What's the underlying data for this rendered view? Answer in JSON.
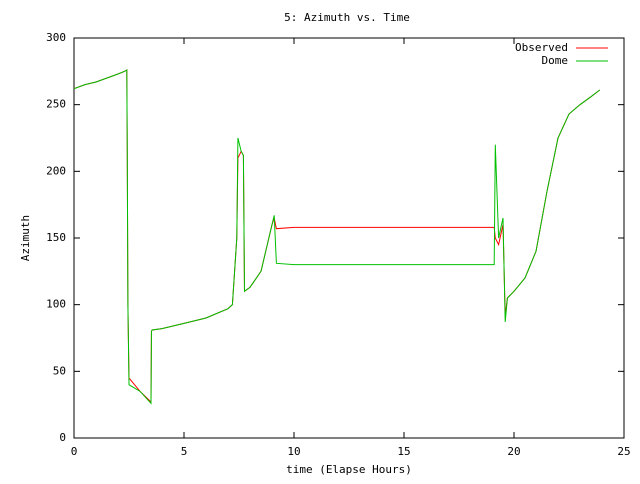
{
  "chart_data": {
    "type": "line",
    "title": "5: Azimuth vs. Time",
    "x_label": "time (Elapse Hours)",
    "y_label": "Azimuth",
    "x": [
      0,
      0.5,
      1.0,
      1.5,
      2.0,
      2.3,
      2.4,
      2.42,
      2.45,
      2.5,
      3.0,
      3.5,
      3.52,
      3.55,
      4.0,
      5.0,
      6.0,
      7.0,
      7.2,
      7.4,
      7.45,
      7.6,
      7.7,
      7.75,
      8.0,
      8.5,
      9.0,
      9.1,
      9.2,
      10.0,
      19.0,
      19.1,
      19.15,
      19.3,
      19.5,
      19.6,
      19.7,
      20.0,
      20.5,
      21.0,
      21.5,
      22.0,
      22.5,
      23.0,
      23.5,
      23.9
    ],
    "series": [
      {
        "name": "Observed",
        "color": "#ff0000",
        "values": [
          262,
          265,
          267,
          270,
          273,
          275,
          276,
          218,
          100,
          45,
          35,
          27,
          80,
          81,
          82,
          86,
          90,
          97,
          100,
          150,
          210,
          215,
          212,
          110,
          113,
          125,
          160,
          165,
          157,
          158,
          158,
          158,
          150,
          145,
          160,
          92,
          105,
          110,
          120,
          140,
          185,
          225,
          243,
          250,
          256,
          261
        ]
      },
      {
        "name": "Dome",
        "color": "#00c000",
        "values": [
          262,
          265,
          267,
          270,
          273,
          275,
          276,
          218,
          100,
          40,
          35,
          26,
          80,
          81,
          82,
          86,
          90,
          97,
          100,
          150,
          225,
          215,
          212,
          110,
          113,
          125,
          160,
          167,
          131,
          130,
          130,
          130,
          220,
          150,
          165,
          87,
          105,
          110,
          120,
          140,
          185,
          225,
          243,
          250,
          256,
          261
        ]
      }
    ],
    "xlim": [
      0,
      25
    ],
    "xticks": [
      0,
      5,
      10,
      15,
      20,
      25
    ],
    "ylim": [
      0,
      300
    ],
    "yticks": [
      0,
      50,
      100,
      150,
      200,
      250,
      300
    ],
    "grid": false,
    "legend": "top-right"
  }
}
